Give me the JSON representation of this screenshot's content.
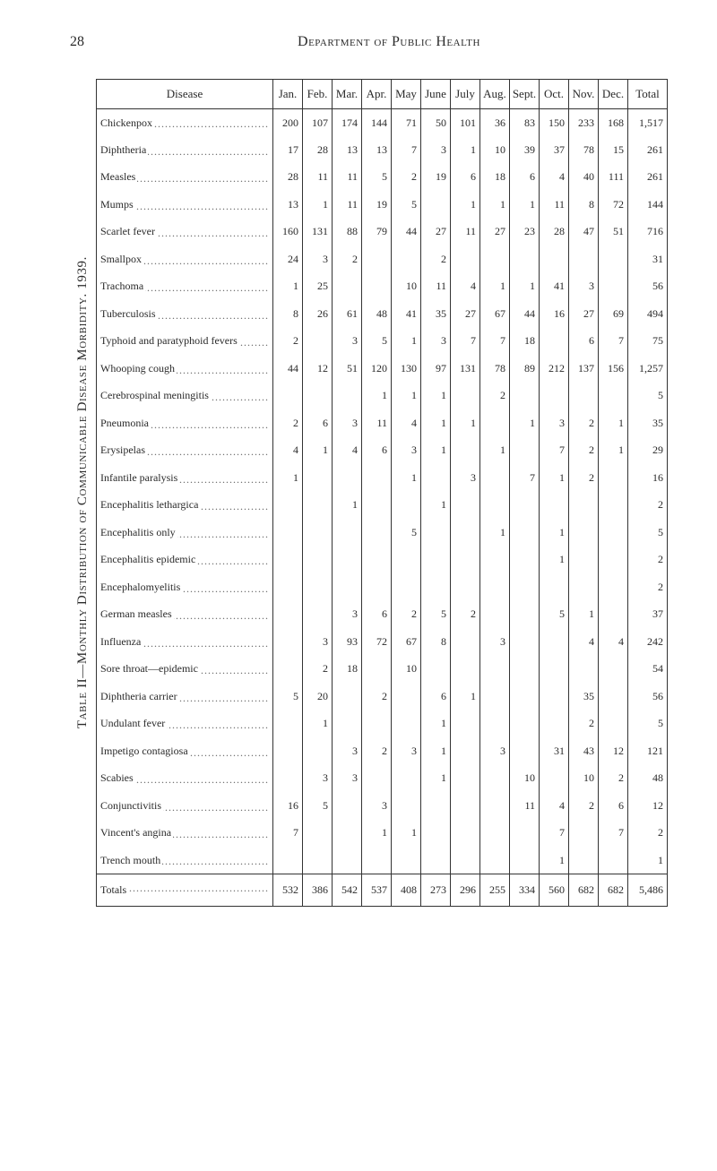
{
  "page_number": "28",
  "department_title": "Department of Public Health",
  "table_caption": "Table II—Monthly Distribution of Communicable Disease Morbidity. 1939.",
  "disease_header": "Disease",
  "months": [
    "Jan.",
    "Feb.",
    "Mar.",
    "Apr.",
    "May",
    "June",
    "July",
    "Aug.",
    "Sept.",
    "Oct.",
    "Nov.",
    "Dec.",
    "Total"
  ],
  "totals_label": "Totals",
  "totals": [
    "532",
    "386",
    "542",
    "537",
    "408",
    "273",
    "296",
    "255",
    "334",
    "560",
    "682",
    "682",
    "5,486"
  ],
  "rows": [
    {
      "d": "Chickenpox",
      "v": [
        "200",
        "107",
        "174",
        "144",
        "71",
        "50",
        "101",
        "36",
        "83",
        "150",
        "233",
        "168",
        "1,517"
      ]
    },
    {
      "d": "Diphtheria",
      "v": [
        "17",
        "28",
        "13",
        "13",
        "7",
        "3",
        "1",
        "10",
        "39",
        "37",
        "78",
        "15",
        "261"
      ]
    },
    {
      "d": "Measles",
      "v": [
        "28",
        "11",
        "11",
        "5",
        "2",
        "19",
        "6",
        "18",
        "6",
        "4",
        "40",
        "111",
        "261"
      ]
    },
    {
      "d": "Mumps",
      "v": [
        "13",
        "1",
        "11",
        "19",
        "5",
        "",
        "1",
        "1",
        "1",
        "11",
        "8",
        "72",
        "144"
      ]
    },
    {
      "d": "Scarlet fever",
      "v": [
        "160",
        "131",
        "88",
        "79",
        "44",
        "27",
        "11",
        "27",
        "23",
        "28",
        "47",
        "51",
        "716"
      ]
    },
    {
      "d": "Smallpox",
      "v": [
        "24",
        "3",
        "2",
        "",
        "",
        "2",
        "",
        "",
        "",
        "",
        "",
        "",
        "31"
      ]
    },
    {
      "d": "Trachoma",
      "v": [
        "1",
        "25",
        "",
        "",
        "10",
        "11",
        "4",
        "1",
        "1",
        "41",
        "3",
        "",
        "56"
      ]
    },
    {
      "d": "Tuberculosis",
      "v": [
        "8",
        "26",
        "61",
        "48",
        "41",
        "35",
        "27",
        "67",
        "44",
        "16",
        "27",
        "69",
        "494"
      ]
    },
    {
      "d": "Typhoid and paratyphoid fevers",
      "v": [
        "2",
        "",
        "3",
        "5",
        "1",
        "3",
        "7",
        "7",
        "18",
        "",
        "6",
        "7",
        "75"
      ]
    },
    {
      "d": "Whooping cough",
      "v": [
        "44",
        "12",
        "51",
        "120",
        "130",
        "97",
        "131",
        "78",
        "89",
        "212",
        "137",
        "156",
        "1,257"
      ]
    },
    {
      "d": "Cerebrospinal meningitis",
      "v": [
        "",
        "",
        "",
        "1",
        "1",
        "1",
        "",
        "2",
        "",
        "",
        "",
        "",
        "5"
      ]
    },
    {
      "d": "Pneumonia",
      "v": [
        "2",
        "6",
        "3",
        "11",
        "4",
        "1",
        "1",
        "",
        "1",
        "3",
        "2",
        "1",
        "35"
      ]
    },
    {
      "d": "Erysipelas",
      "v": [
        "4",
        "1",
        "4",
        "6",
        "3",
        "1",
        "",
        "1",
        "",
        "7",
        "2",
        "1",
        "29"
      ]
    },
    {
      "d": "Infantile paralysis",
      "v": [
        "1",
        "",
        "",
        "",
        "1",
        "",
        "3",
        "",
        "7",
        "1",
        "2",
        "",
        "16"
      ]
    },
    {
      "d": "Encephalitis lethargica",
      "v": [
        "",
        "",
        "1",
        "",
        "",
        "1",
        "",
        "",
        "",
        "",
        "",
        "",
        "2"
      ]
    },
    {
      "d": "Encephalitis only",
      "v": [
        "",
        "",
        "",
        "",
        "5",
        "",
        "",
        "1",
        "",
        "1",
        "",
        "",
        "5"
      ]
    },
    {
      "d": "Encephalitis epidemic",
      "v": [
        "",
        "",
        "",
        "",
        "",
        "",
        "",
        "",
        "",
        "1",
        "",
        "",
        "2"
      ]
    },
    {
      "d": "Encephalomyelitis",
      "v": [
        "",
        "",
        "",
        "",
        "",
        "",
        "",
        "",
        "",
        "",
        "",
        "",
        "2"
      ]
    },
    {
      "d": "German measles",
      "v": [
        "",
        "",
        "3",
        "6",
        "2",
        "5",
        "2",
        "",
        "",
        "5",
        "1",
        "",
        "37"
      ]
    },
    {
      "d": "Influenza",
      "v": [
        "",
        "3",
        "93",
        "72",
        "67",
        "8",
        "",
        "3",
        "",
        "",
        "4",
        "4",
        "242"
      ]
    },
    {
      "d": "Sore throat—epidemic",
      "v": [
        "",
        "2",
        "18",
        "",
        "10",
        "",
        "",
        "",
        "",
        "",
        "",
        "",
        "54"
      ]
    },
    {
      "d": "Diphtheria carrier",
      "v": [
        "5",
        "20",
        "",
        "2",
        "",
        "6",
        "1",
        "",
        "",
        "",
        "35",
        "",
        "56"
      ]
    },
    {
      "d": "Undulant fever",
      "v": [
        "",
        "1",
        "",
        "",
        "",
        "1",
        "",
        "",
        "",
        "",
        "2",
        "",
        "5"
      ]
    },
    {
      "d": "Impetigo contagiosa",
      "v": [
        "",
        "",
        "3",
        "2",
        "3",
        "1",
        "",
        "3",
        "",
        "31",
        "43",
        "12",
        "121"
      ]
    },
    {
      "d": "Scabies",
      "v": [
        "",
        "3",
        "3",
        "",
        "",
        "1",
        "",
        "",
        "10",
        "",
        "10",
        "2",
        "48"
      ]
    },
    {
      "d": "Conjunctivitis",
      "v": [
        "16",
        "5",
        "",
        "3",
        "",
        "",
        "",
        "",
        "11",
        "4",
        "2",
        "6",
        "12"
      ]
    },
    {
      "d": "Vincent's angina",
      "v": [
        "7",
        "",
        "",
        "1",
        "1",
        "",
        "",
        "",
        "",
        "7",
        "",
        "7",
        "2"
      ]
    },
    {
      "d": "Trench mouth",
      "v": [
        "",
        "",
        "",
        "",
        "",
        "",
        "",
        "",
        "",
        "1",
        "",
        "",
        "1"
      ]
    }
  ]
}
